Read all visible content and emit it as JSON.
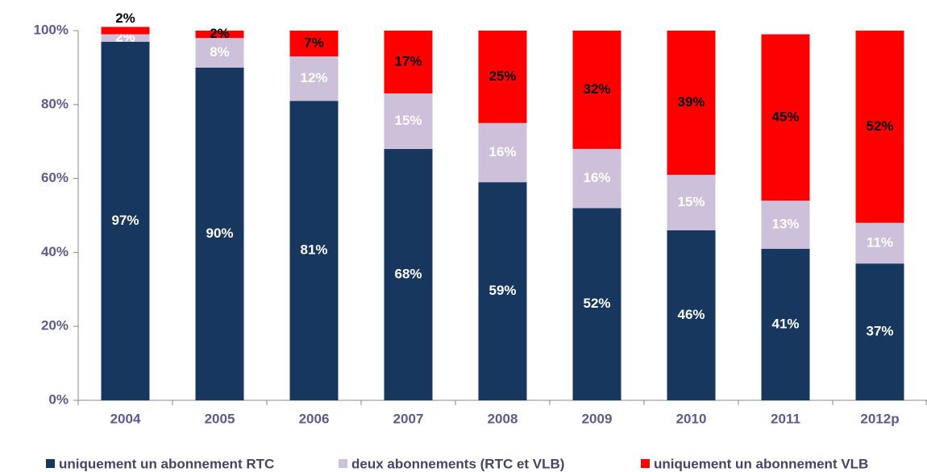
{
  "chart_data": {
    "type": "bar",
    "stacked": true,
    "categories": [
      "2004",
      "2005",
      "2006",
      "2007",
      "2008",
      "2009",
      "2010",
      "2011",
      "2012p"
    ],
    "series": [
      {
        "name": "uniquement un abonnement RTC",
        "color": "#17375e",
        "label_color": "#ffffff",
        "values": [
          97,
          90,
          81,
          68,
          59,
          52,
          46,
          41,
          37
        ],
        "value_labels": [
          "97%",
          "90%",
          "81%",
          "68%",
          "59%",
          "52%",
          "46%",
          "41%",
          "37%"
        ]
      },
      {
        "name": "deux abonnements (RTC et VLB)",
        "color": "#ccc0da",
        "label_color": "#ffffff",
        "values": [
          2,
          8,
          12,
          15,
          16,
          16,
          15,
          13,
          11
        ],
        "value_labels": [
          "2%",
          "8%",
          "12%",
          "15%",
          "16%",
          "16%",
          "15%",
          "13%",
          "11%"
        ]
      },
      {
        "name": "uniquement un abonnement VLB",
        "color": "#ff0000",
        "label_color": "#000000",
        "values": [
          2,
          2,
          7,
          17,
          25,
          32,
          39,
          45,
          52
        ],
        "value_labels": [
          "2%",
          "2%",
          "7%",
          "17%",
          "25%",
          "32%",
          "39%",
          "45%",
          "52%"
        ]
      }
    ],
    "ylim": [
      0,
      100
    ],
    "yticks": [
      {
        "value": 0,
        "label": "0%"
      },
      {
        "value": 20,
        "label": "20%"
      },
      {
        "value": 40,
        "label": "40%"
      },
      {
        "value": 60,
        "label": "60%"
      },
      {
        "value": 80,
        "label": "80%"
      },
      {
        "value": 100,
        "label": "100%"
      }
    ],
    "legend": "bottom"
  }
}
